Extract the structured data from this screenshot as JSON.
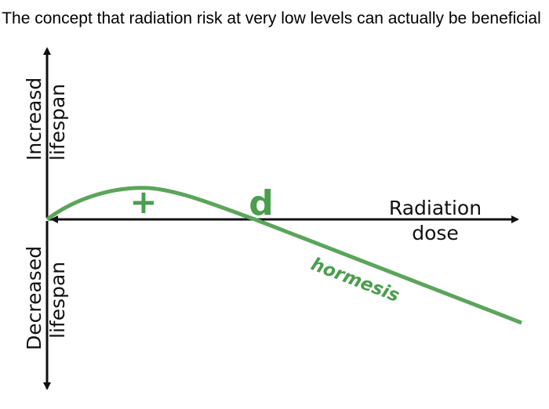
{
  "title": "The concept that radiation risk at very low levels can actually be beneficial",
  "y_axis": {
    "upper": [
      "Increasd",
      "lifespan"
    ],
    "lower": [
      "Decreased",
      "lifespan"
    ]
  },
  "x_axis": {
    "label": [
      "Radiation",
      "dose"
    ]
  },
  "annotations": {
    "plus": "+",
    "dose_point": "d",
    "curve": "hormesis"
  }
}
